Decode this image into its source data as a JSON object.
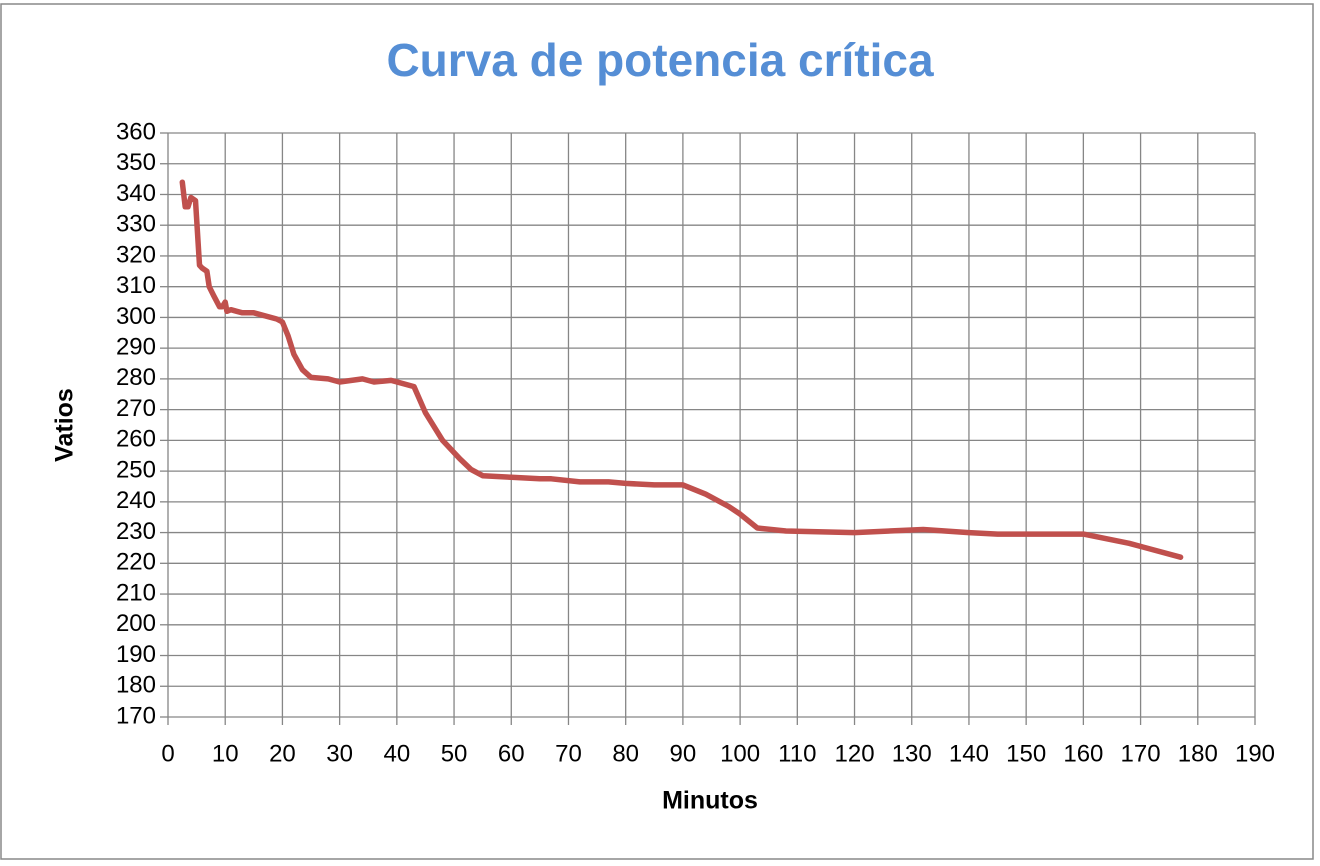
{
  "chart_data": {
    "type": "line",
    "title": "Curva de potencia crítica",
    "x_label": "Minutos",
    "y_label": "Vatios",
    "color": "#c0504d",
    "grid": true,
    "x": [
      2.5,
      3,
      3.5,
      4,
      4.8,
      5.5,
      6,
      6.8,
      7.2,
      8,
      9,
      9.5,
      10,
      10.3,
      11,
      12,
      13,
      15,
      19,
      20,
      21,
      22,
      23.5,
      25,
      28,
      30,
      34,
      36,
      39,
      43,
      45,
      48,
      51,
      53,
      55,
      60,
      65,
      67,
      72,
      77,
      80,
      85,
      90,
      94,
      98,
      100,
      103,
      108,
      120,
      132,
      140,
      145,
      160,
      168,
      177
    ],
    "values": [
      344,
      336,
      336,
      339,
      338,
      317,
      316,
      315,
      310,
      307,
      303.5,
      303.5,
      305,
      302,
      302.5,
      302,
      301.5,
      301.5,
      299.5,
      298.5,
      294,
      288,
      283,
      280.5,
      280,
      279,
      280,
      279,
      279.5,
      277.5,
      269,
      260,
      254,
      250.5,
      248.5,
      248,
      247.5,
      247.5,
      246.5,
      246.5,
      246,
      245.5,
      245.5,
      242.5,
      238.5,
      236,
      231.5,
      230.5,
      230,
      231,
      230,
      229.5,
      229.5,
      226.5,
      222
    ],
    "xlim": [
      0,
      190
    ],
    "ylim": [
      170,
      360
    ],
    "xticks": [
      0,
      10,
      20,
      30,
      40,
      50,
      60,
      70,
      80,
      90,
      100,
      110,
      120,
      130,
      140,
      150,
      160,
      170,
      180,
      190
    ],
    "yticks": [
      170,
      180,
      190,
      200,
      210,
      220,
      230,
      240,
      250,
      260,
      270,
      280,
      290,
      300,
      310,
      320,
      330,
      340,
      350,
      360
    ]
  }
}
